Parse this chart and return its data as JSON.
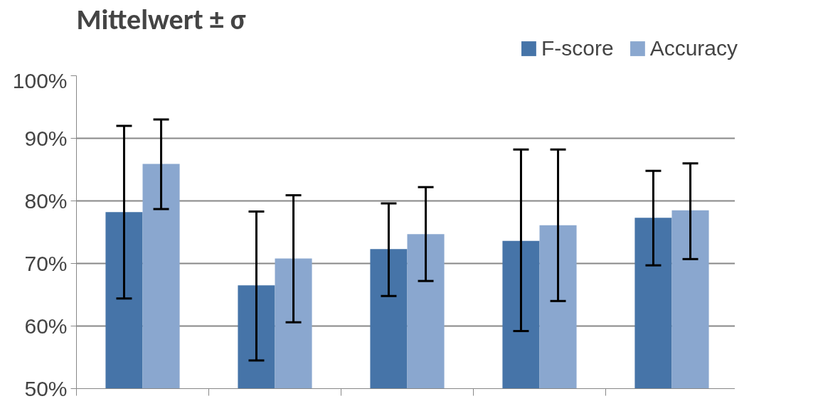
{
  "chart_data": {
    "type": "bar",
    "title": "Mittelwert ± σ",
    "categories": [
      null,
      null,
      null,
      null,
      null
    ],
    "series": [
      {
        "name": "F-score",
        "color": "#4674a8",
        "values": [
          78.2,
          66.5,
          72.3,
          73.6,
          77.3
        ],
        "errors": [
          [
            64.4,
            92.0
          ],
          [
            54.5,
            78.3
          ],
          [
            64.8,
            79.6
          ],
          [
            59.2,
            88.2
          ],
          [
            69.7,
            84.8
          ]
        ]
      },
      {
        "name": "Accuracy",
        "color": "#8aa7cf",
        "values": [
          85.9,
          70.8,
          74.7,
          76.1,
          78.5
        ],
        "errors": [
          [
            78.7,
            93.0
          ],
          [
            60.6,
            80.9
          ],
          [
            67.2,
            82.2
          ],
          [
            64.0,
            88.2
          ],
          [
            70.7,
            86.0
          ]
        ]
      }
    ],
    "ylim": [
      50,
      100
    ],
    "yticks": [
      {
        "value": 50,
        "label": "50%"
      },
      {
        "value": 60,
        "label": "60%"
      },
      {
        "value": 70,
        "label": "70%"
      },
      {
        "value": 80,
        "label": "80%"
      },
      {
        "value": 90,
        "label": "90%"
      },
      {
        "value": 100,
        "label": "100%"
      }
    ],
    "grid": "y",
    "legend": "top right"
  }
}
